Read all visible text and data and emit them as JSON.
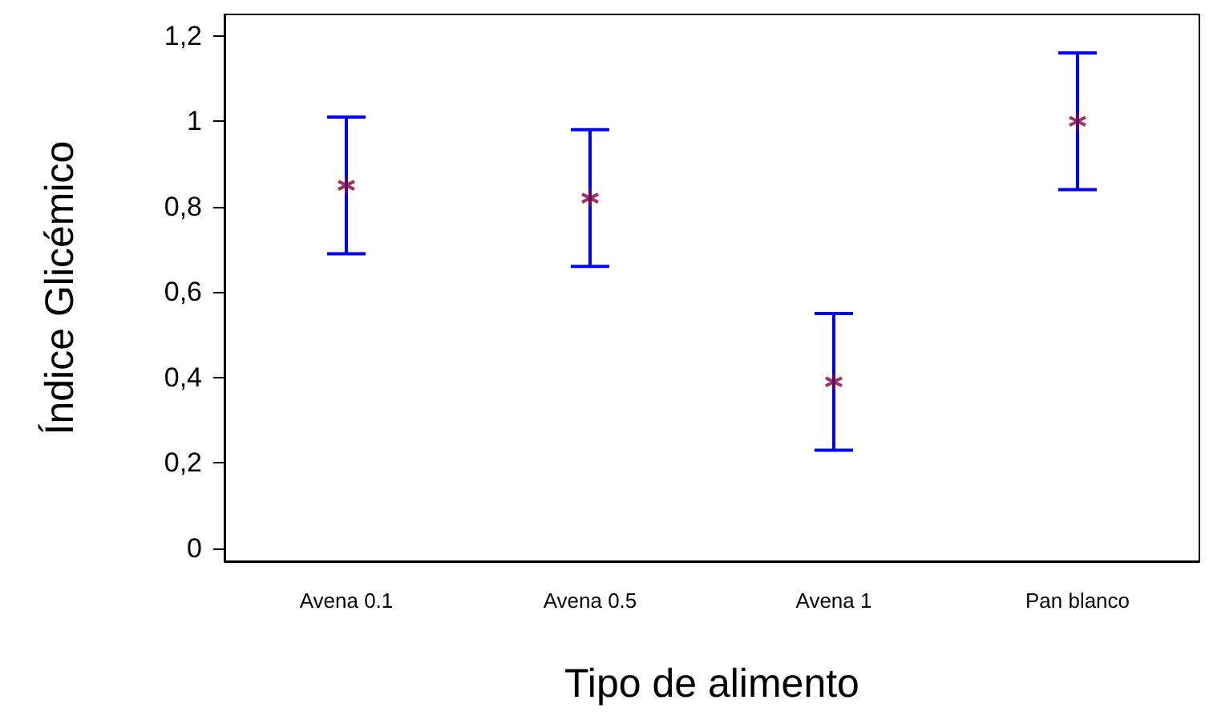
{
  "chart_data": {
    "type": "scatter",
    "xlabel": "Tipo de alimento",
    "ylabel": "Índice Glicémico",
    "categories": [
      "Avena 0.1",
      "Avena 0.5",
      "Avena 1",
      "Pan blanco"
    ],
    "series": [
      {
        "color": "#800040",
        "values": [
          0.85,
          0.82,
          0.39,
          1.0
        ],
        "errors": [
          [
            0.69,
            1.01
          ],
          [
            0.66,
            0.98
          ],
          [
            0.23,
            0.55
          ],
          [
            0.84,
            1.16
          ]
        ]
      }
    ],
    "ylim": [
      -0.03,
      1.25
    ],
    "yticks": [
      0,
      {
        "value": 0.2,
        "label": "0,2"
      },
      {
        "value": 0.4,
        "label": "0,4"
      },
      {
        "value": 0.6,
        "label": "0,6"
      },
      {
        "value": 0.8,
        "label": "0,8"
      },
      1,
      {
        "value": 1.2,
        "label": "1,2"
      }
    ],
    "marker": "cross"
  }
}
